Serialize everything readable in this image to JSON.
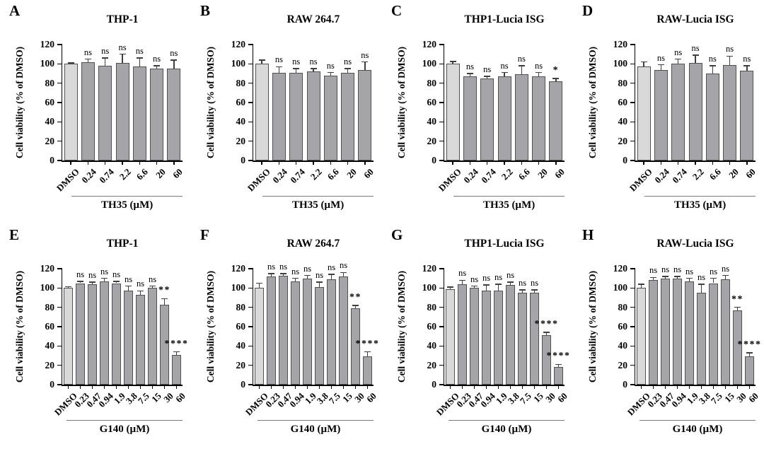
{
  "figure": {
    "y_axis_label": "Cell viability (% of DMSO)",
    "y_ticks": [
      0,
      20,
      40,
      60,
      80,
      100,
      120
    ],
    "colors": {
      "background": "#ffffff",
      "dmso_fill": "#d9d9d9",
      "treatment_fill": "#a4a4a9",
      "bar_border": "#4f4f54",
      "error_bar": "#3f3f3f",
      "axis": "#000000",
      "group_line": "#7a7a7a"
    }
  },
  "chart_data": [
    {
      "type": "bar",
      "panel": "A",
      "title": "THP-1",
      "group_label": "TH35 (µM)",
      "ylabel": "Cell viability (% of DMSO)",
      "ylim": [
        0,
        120
      ],
      "grid": false,
      "legend": "none",
      "categories": [
        "DMSO",
        "0.24",
        "0.74",
        "2.2",
        "6.6",
        "20",
        "60"
      ],
      "values": [
        100,
        102,
        98,
        101,
        97,
        95,
        95
      ],
      "errors": [
        1,
        3,
        8,
        9,
        9,
        3,
        9
      ],
      "significance": [
        "",
        "ns",
        "ns",
        "ns",
        "ns",
        "ns",
        "ns"
      ]
    },
    {
      "type": "bar",
      "panel": "B",
      "title": "RAW 264.7",
      "group_label": "TH35 (µM)",
      "ylabel": "Cell viability (% of DMSO)",
      "ylim": [
        0,
        120
      ],
      "grid": false,
      "legend": "none",
      "categories": [
        "DMSO",
        "0.24",
        "0.74",
        "2.2",
        "6.6",
        "20",
        "60"
      ],
      "values": [
        100,
        91,
        91,
        92,
        88,
        91,
        94
      ],
      "errors": [
        4,
        6,
        4,
        3,
        3,
        4,
        8
      ],
      "significance": [
        "",
        "ns",
        "ns",
        "ns",
        "ns",
        "ns",
        "ns"
      ]
    },
    {
      "type": "bar",
      "panel": "C",
      "title": "THP1-Lucia ISG",
      "group_label": "TH35 (µM)",
      "ylabel": "Cell viability (% of DMSO)",
      "ylim": [
        0,
        120
      ],
      "grid": false,
      "legend": "none",
      "categories": [
        "DMSO",
        "0.24",
        "0.74",
        "2.2",
        "6.6",
        "20",
        "60"
      ],
      "values": [
        100,
        87,
        85,
        87,
        89,
        87,
        82
      ],
      "errors": [
        2.5,
        3,
        2,
        4,
        9,
        4,
        3
      ],
      "significance": [
        "",
        "ns",
        "ns",
        "ns",
        "ns",
        "ns",
        "*"
      ]
    },
    {
      "type": "bar",
      "panel": "D",
      "title": "RAW-Lucia ISG",
      "group_label": "TH35 (µM)",
      "ylabel": "Cell viability (% of DMSO)",
      "ylim": [
        0,
        120
      ],
      "grid": false,
      "legend": "none",
      "categories": [
        "DMSO",
        "0.24",
        "0.74",
        "2.2",
        "6.6",
        "20",
        "60"
      ],
      "values": [
        97,
        94,
        100,
        101,
        90,
        99,
        93
      ],
      "errors": [
        5,
        5,
        5,
        8,
        8,
        9,
        5
      ],
      "significance": [
        "",
        "ns",
        "ns",
        "ns",
        "ns",
        "ns",
        "ns"
      ]
    },
    {
      "type": "bar",
      "panel": "E",
      "title": "THP-1",
      "group_label": "G140 (µM)",
      "ylabel": "Cell viability (% of DMSO)",
      "ylim": [
        0,
        120
      ],
      "grid": false,
      "legend": "none",
      "categories": [
        "DMSO",
        "0.23",
        "0.47",
        "0.94",
        "1.9",
        "3.8",
        "7.5",
        "15",
        "30",
        "60"
      ],
      "values": [
        100,
        105,
        104,
        107,
        105,
        97,
        93,
        100,
        83,
        31
      ],
      "errors": [
        1.5,
        2,
        2,
        3,
        2,
        5,
        4,
        2,
        6,
        3
      ],
      "significance": [
        "",
        "ns",
        "ns",
        "ns",
        "ns",
        "ns",
        "ns",
        "ns",
        "**",
        "****"
      ]
    },
    {
      "type": "bar",
      "panel": "F",
      "title": "RAW 264.7",
      "group_label": "G140 (µM)",
      "ylabel": "Cell viability (% of DMSO)",
      "ylim": [
        0,
        120
      ],
      "grid": false,
      "legend": "none",
      "categories": [
        "DMSO",
        "0.23",
        "0.47",
        "0.94",
        "1.9",
        "3.8",
        "7.5",
        "15",
        "30",
        "60"
      ],
      "values": [
        100,
        112,
        113,
        107,
        110,
        101,
        109,
        112,
        79,
        29
      ],
      "errors": [
        5,
        3,
        2,
        3,
        3,
        5,
        5,
        4,
        3,
        5
      ],
      "significance": [
        "",
        "ns",
        "ns",
        "ns",
        "ns",
        "ns",
        "ns",
        "ns",
        "**",
        "****"
      ]
    },
    {
      "type": "bar",
      "panel": "G",
      "title": "THP1-Lucia ISG",
      "group_label": "G140 (µM)",
      "ylabel": "Cell viability (% of DMSO)",
      "ylim": [
        0,
        120
      ],
      "grid": false,
      "legend": "none",
      "categories": [
        "DMSO",
        "0.23",
        "0.47",
        "0.94",
        "1.9",
        "3.8",
        "7.5",
        "15",
        "30",
        "60"
      ],
      "values": [
        99,
        104,
        100,
        97,
        97,
        103,
        95,
        95,
        51,
        18
      ],
      "errors": [
        2,
        4,
        2,
        6,
        7,
        3,
        3,
        3,
        3,
        3
      ],
      "significance": [
        "",
        "ns",
        "ns",
        "ns",
        "ns",
        "ns",
        "ns",
        "ns",
        "****",
        "****"
      ]
    },
    {
      "type": "bar",
      "panel": "H",
      "title": "RAW-Lucia ISG",
      "group_label": "G140 (µM)",
      "ylabel": "Cell viability (% of DMSO)",
      "ylim": [
        0,
        120
      ],
      "grid": false,
      "legend": "none",
      "categories": [
        "DMSO",
        "0.23",
        "0.47",
        "0.94",
        "1.9",
        "3.8",
        "7.5",
        "15",
        "30",
        "60"
      ],
      "values": [
        100,
        108,
        110,
        110,
        107,
        95,
        105,
        109,
        77,
        29
      ],
      "errors": [
        4,
        3,
        2,
        2,
        3,
        9,
        5,
        4,
        3,
        4
      ],
      "significance": [
        "",
        "ns",
        "ns",
        "ns",
        "ns",
        "ns",
        "ns",
        "ns",
        "**",
        "****"
      ]
    }
  ]
}
